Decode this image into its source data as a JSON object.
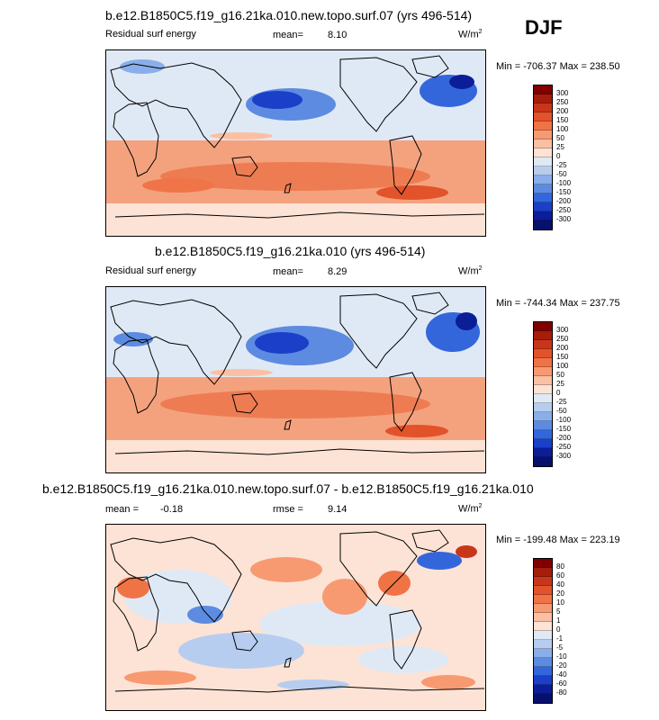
{
  "season": "DJF",
  "panels": [
    {
      "title": "b.e12.B1850C5.f19_g16.21ka.010.new.topo.surf.07 (yrs 496-514)",
      "left_label": "Residual surf energy",
      "mean_label": "mean=",
      "mean_value": "8.10",
      "units": "W/m",
      "units_exp": "2",
      "minmax": "Min = -706.37 Max = 238.50",
      "levels": [
        "300",
        "250",
        "200",
        "150",
        "100",
        "50",
        "25",
        "0",
        "-25",
        "-50",
        "-100",
        "-150",
        "-200",
        "-250",
        "-300"
      ]
    },
    {
      "title": "b.e12.B1850C5.f19_g16.21ka.010 (yrs 496-514)",
      "left_label": "Residual surf energy",
      "mean_label": "mean=",
      "mean_value": "8.29",
      "units": "W/m",
      "units_exp": "2",
      "minmax": "Min = -744.34 Max = 237.75",
      "levels": [
        "300",
        "250",
        "200",
        "150",
        "100",
        "50",
        "25",
        "0",
        "-25",
        "-50",
        "-100",
        "-150",
        "-200",
        "-250",
        "-300"
      ]
    },
    {
      "title": "b.e12.B1850C5.f19_g16.21ka.010.new.topo.surf.07 - b.e12.B1850C5.f19_g16.21ka.010",
      "mean_label": "mean =",
      "mean_value": "-0.18",
      "rmse_label": "rmse =",
      "rmse_value": "9.14",
      "units": "W/m",
      "units_exp": "2",
      "minmax": "Min = -199.48 Max = 223.19",
      "levels": [
        "80",
        "60",
        "40",
        "20",
        "10",
        "5",
        "1",
        "0",
        "-1",
        "-5",
        "-10",
        "-20",
        "-40",
        "-60",
        "-80"
      ]
    }
  ],
  "colorbar_colors": [
    "#800000",
    "#a51d0b",
    "#c8361a",
    "#e2522b",
    "#f07346",
    "#f79a72",
    "#fbc0a4",
    "#fde3d5",
    "#dfe9f6",
    "#b7cdef",
    "#8aaee9",
    "#5c8be1",
    "#3466db",
    "#1b3fc8",
    "#0c1d98",
    "#08106e"
  ]
}
